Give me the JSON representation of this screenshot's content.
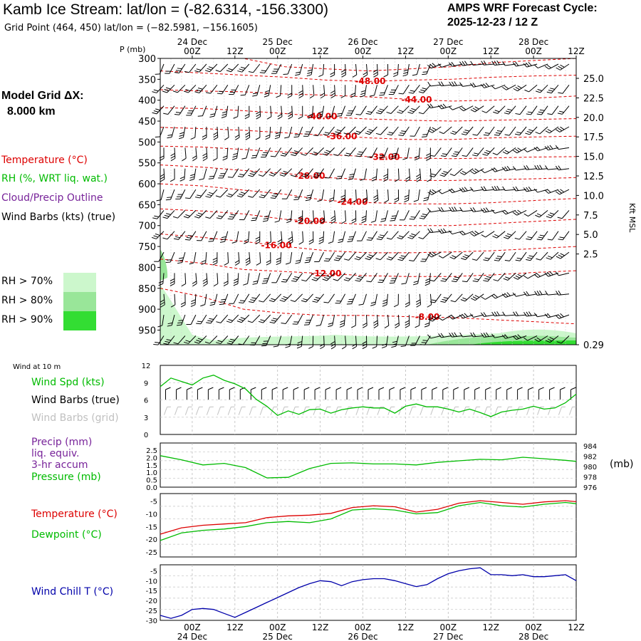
{
  "header": {
    "title": "Kamb Ice Stream:  lat/lon = (-82.6314, -156.3300)",
    "subtitle": "Grid Point (464, 450) lat/lon = (−82.5981, −156.1605)",
    "cycle_line1": "AMPS WRF Forecast Cycle:",
    "cycle_line2": "2025-12-23 / 12  Z",
    "grid_line1": "Model Grid ΔX:",
    "grid_line2": "8.000 km"
  },
  "colors": {
    "temperature": "#dd0000",
    "rh_dewpoint": "#00bb00",
    "cloud": "#772299",
    "windchill": "#0000aa",
    "rh70": "#ccf7cc",
    "rh80": "#99e699",
    "rh90": "#33dd33"
  },
  "legend": {
    "temperature": "Temperature (°C)",
    "rh": "RH (%, WRT liq. wat.)",
    "cloud": "Cloud/Precip Outline",
    "wind": "Wind Barbs (kts) (true)",
    "rh70": "RH > 70%",
    "rh80": "RH > 80%",
    "rh90": "RH > 90%"
  },
  "time_axis": {
    "hour_labels": [
      "00Z",
      "12Z",
      "00Z",
      "12Z",
      "00Z",
      "12Z",
      "00Z",
      "12Z",
      "00Z",
      "12Z"
    ],
    "date_labels": [
      "24 Dec",
      "25 Dec",
      "26 Dec",
      "27 Dec",
      "28 Dec"
    ]
  },
  "chart_data": [
    {
      "type": "cross-section",
      "ylabel": "P (mb)",
      "y2label": "Kft MSL",
      "pressure_levels": [
        300,
        350,
        400,
        450,
        500,
        550,
        600,
        650,
        700,
        750,
        800,
        850,
        900,
        950
      ],
      "kft_labels": [
        "25.0",
        "22.5",
        "20.0",
        "17.5",
        "15.0",
        "12.5",
        "10.0",
        "7.5",
        "5.0",
        "2.5",
        "0.29"
      ],
      "temperature_contour_labels": [
        "-48.00",
        "-44.00",
        "-40.00",
        "-36.00",
        "-32.00",
        "-28.00",
        "-24.00",
        "-20.00",
        "-16.00",
        "-12.00",
        "-8.00"
      ]
    },
    {
      "type": "line",
      "header": "Wind at 10 m",
      "label_speed": "Wind Spd (kts)",
      "label_barbs": "Wind Barbs (true)",
      "label_barbs_grid": "Wind Barbs (grid)",
      "yticks": [
        "0",
        "3",
        "6",
        "9",
        "12"
      ],
      "ylim": [
        0,
        12
      ],
      "x": [
        0,
        3,
        6,
        9,
        12,
        15,
        18,
        21,
        24,
        27,
        30,
        33,
        36,
        39,
        42,
        45,
        48,
        51,
        54,
        57,
        60,
        63,
        66,
        69,
        72,
        75,
        78,
        81,
        84,
        87,
        90,
        93,
        96,
        99,
        102,
        105,
        108,
        111,
        114,
        117
      ],
      "series": [
        {
          "name": "Wind Spd (kts)",
          "values": [
            8.3,
            9.8,
            9.2,
            8.6,
            9.8,
            10.3,
            9.4,
            8.8,
            7.9,
            6.1,
            4.9,
            3.3,
            4.1,
            3.5,
            4.3,
            4.4,
            3.7,
            4.3,
            4.6,
            4.8,
            4.6,
            4.6,
            3.7,
            4.9,
            5.3,
            4.8,
            4.8,
            4.4,
            3.9,
            4.4,
            3.8,
            3.1,
            3.9,
            4.2,
            4.4,
            4.9,
            4.4,
            4.6,
            5.5,
            7.0
          ]
        }
      ]
    },
    {
      "type": "line",
      "label_precip": "Precip (mm)",
      "label_liq": "liq. equiv.",
      "label_accum": "3-hr accum",
      "label_pressure": "Pressure (mb)",
      "unit_right": "(mb)",
      "yticks_left": [
        "0.0",
        "0.5",
        "1.0",
        "1.5",
        "2.0",
        "2.5"
      ],
      "yticks_right": [
        "976",
        "978",
        "980",
        "982",
        "984"
      ],
      "ylim_left": [
        0,
        2.5
      ],
      "ylim_right": [
        976,
        984
      ],
      "x": [
        0,
        6,
        12,
        18,
        24,
        30,
        36,
        42,
        48,
        54,
        60,
        66,
        72,
        78,
        84,
        90,
        96,
        102,
        108,
        114,
        117
      ],
      "series": [
        {
          "name": "Pressure (mb)",
          "values": [
            982.1,
            981.3,
            980.3,
            980.6,
            979.8,
            977.8,
            977.9,
            979.6,
            980.6,
            980.7,
            980.5,
            980.5,
            980.3,
            980.8,
            981.1,
            981.4,
            981.3,
            981.8,
            981.5,
            981.2,
            981.0
          ]
        }
      ]
    },
    {
      "type": "line",
      "label_temperature": "Temperature (°C)",
      "label_dewpoint": "Dewpoint (°C)",
      "yticks": [
        "-25",
        "-20",
        "-15",
        "-10",
        "-5"
      ],
      "ylim": [
        -27,
        -2
      ],
      "x": [
        0,
        6,
        12,
        18,
        24,
        30,
        36,
        42,
        48,
        54,
        60,
        66,
        72,
        78,
        84,
        90,
        96,
        102,
        108,
        114,
        117
      ],
      "series": [
        {
          "name": "Temperature (°C)",
          "values": [
            -18,
            -15.5,
            -14.5,
            -14,
            -13.5,
            -11.5,
            -10.8,
            -10.5,
            -9.8,
            -7.5,
            -6.8,
            -7.2,
            -9.3,
            -8.2,
            -5.8,
            -4.8,
            -5.5,
            -6.2,
            -5.3,
            -4.8,
            -5.2
          ]
        },
        {
          "name": "Dewpoint (°C)",
          "values": [
            -20.5,
            -17.5,
            -16.5,
            -16,
            -15,
            -13.5,
            -13,
            -13.5,
            -12,
            -8.5,
            -8,
            -8.5,
            -10,
            -9.5,
            -6.8,
            -5.5,
            -6.8,
            -7.3,
            -6.2,
            -5.5,
            -6.0
          ]
        }
      ]
    },
    {
      "type": "line",
      "label_windchill": "Wind Chill T (°C)",
      "yticks": [
        "-30",
        "-25",
        "-20",
        "-15",
        "-10",
        "-5"
      ],
      "ylim": [
        -30,
        -2
      ],
      "x": [
        0,
        3,
        6,
        9,
        12,
        15,
        18,
        21,
        24,
        27,
        30,
        33,
        36,
        39,
        42,
        45,
        48,
        51,
        54,
        57,
        60,
        63,
        66,
        69,
        72,
        75,
        78,
        81,
        84,
        87,
        90,
        93,
        96,
        99,
        102,
        105,
        108,
        111,
        114,
        117
      ],
      "series": [
        {
          "name": "Wind Chill T (°C)",
          "values": [
            -27.5,
            -29,
            -27.5,
            -24.5,
            -24,
            -24.5,
            -26.5,
            -28.5,
            -26,
            -23.5,
            -21,
            -18.5,
            -16,
            -13.5,
            -11.5,
            -10,
            -10.5,
            -12.5,
            -10.5,
            -9.5,
            -9,
            -9,
            -10,
            -11.5,
            -13,
            -12,
            -9,
            -6.5,
            -5,
            -4,
            -3.5,
            -7,
            -7,
            -7.5,
            -7,
            -8,
            -8,
            -7.5,
            -7,
            -10
          ]
        }
      ]
    }
  ]
}
